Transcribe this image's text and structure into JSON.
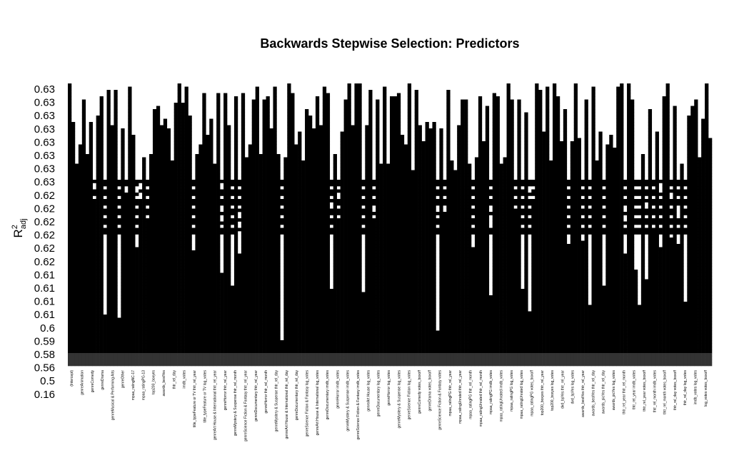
{
  "chart_data": {
    "type": "heatmap",
    "title": "Backwards Stepwise Selection: Predictors",
    "ylabel": "R2adj",
    "ylabel_main": "R",
    "ylabel_sup": "2",
    "ylabel_sub": "adj",
    "y_tick_labels": [
      "0.63",
      "0.63",
      "0.63",
      "0.63",
      "0.63",
      "0.63",
      "0.63",
      "0.63",
      "0.62",
      "0.62",
      "0.62",
      "0.62",
      "0.62",
      "0.62",
      "0.61",
      "0.61",
      "0.61",
      "0.61",
      "0.6",
      "0.59",
      "0.58",
      "0.56",
      "0.5",
      "0.16"
    ],
    "x_tick_labels": [
      "(Intercept)",
      "genreAnimation",
      "genreComedy",
      "genreDrama",
      "genreMusical & Performing Arts",
      "genreOther",
      "mpaa_ratingNC-17",
      "mpaa_ratingPG-13",
      "top200_boxyes",
      "awards_bestYes",
      "thtr_rel_day",
      "imdb_votes",
      "title_typeFeature or TV thtr_rel_year",
      "title_typeFeature or TV log_votes",
      "genreArt House & International thtr_rel_year",
      "genreHorror thtr_rel_year",
      "genreMystery & Suspense thtr_rel_month",
      "genreScience Fiction & Fantasy thtr_rel_year",
      "genreDocumentary thtr_rel_year",
      "genreHorror thtr_rel_month",
      "genreMystery & Suspense thtr_rel_day",
      "genreArt House & International thtr_rel_day",
      "genreDocumentary thtr_rel_day",
      "genreScience Fiction & Fantasy log_votes",
      "genreArt House & International log_votes",
      "genreDocumentary imdb_votes",
      "genreHorror imdb_votes",
      "genreMystery & Suspense imdb_votes",
      "genreScience Fiction & Fantasy imdb_votes",
      "genreArt House log_votes",
      "genreDocumentary log_votes",
      "genreHorror log_votes",
      "genreMystery & Suspense log_votes",
      "genreScience Fiction log_votes",
      "genreComedy votes_boxoff",
      "genreDrama votes_boxoff",
      "genreScience Fiction & Fantasy votes",
      "mpaa_ratingPG thtr_rel_year",
      "mpaa_ratingUnrated thtr_rel_year",
      "mpaa_ratingPG thtr_rel_month",
      "mpaa_ratingUnrated thtr_rel_month",
      "mpaa_ratingPG imdb_votes",
      "mpaa_ratingUnrated imdb_votes",
      "mpaa_ratingPG log_votes",
      "mpaa_ratingUnrated log_votes",
      "mpaa_ratingPG votes_boxoff",
      "top200_boxyes thtr_rel_year",
      "top200_boxyes log_votes",
      "dvd_bpYes thtr_rel_year",
      "dvd_bpYes log_votes",
      "awards_bestYes thtr_rel_year",
      "awards_bestYes thtr_rel_day",
      "awards_picYes thtr_rel_day",
      "awards_picYes log_votes",
      "thtr_rel_year thtr_rel_month",
      "thtr_rel_year imdb_votes",
      "thtr_rel_year votes_boxoff",
      "thtr_rel_month imdb_votes",
      "thtr_rel_month votes_boxoff",
      "thtr_rel_day votes_boxoff",
      "thtr_rel_day log_votes",
      "imdb_votes log_votes",
      "log_votes votes_boxoff"
    ],
    "n_columns": 182,
    "n_rows": 88,
    "best_subset_rows": 6,
    "common_rows_from": 30,
    "palette": [
      "#000000",
      "#ffffff"
    ],
    "grid": false,
    "legend": "none"
  }
}
